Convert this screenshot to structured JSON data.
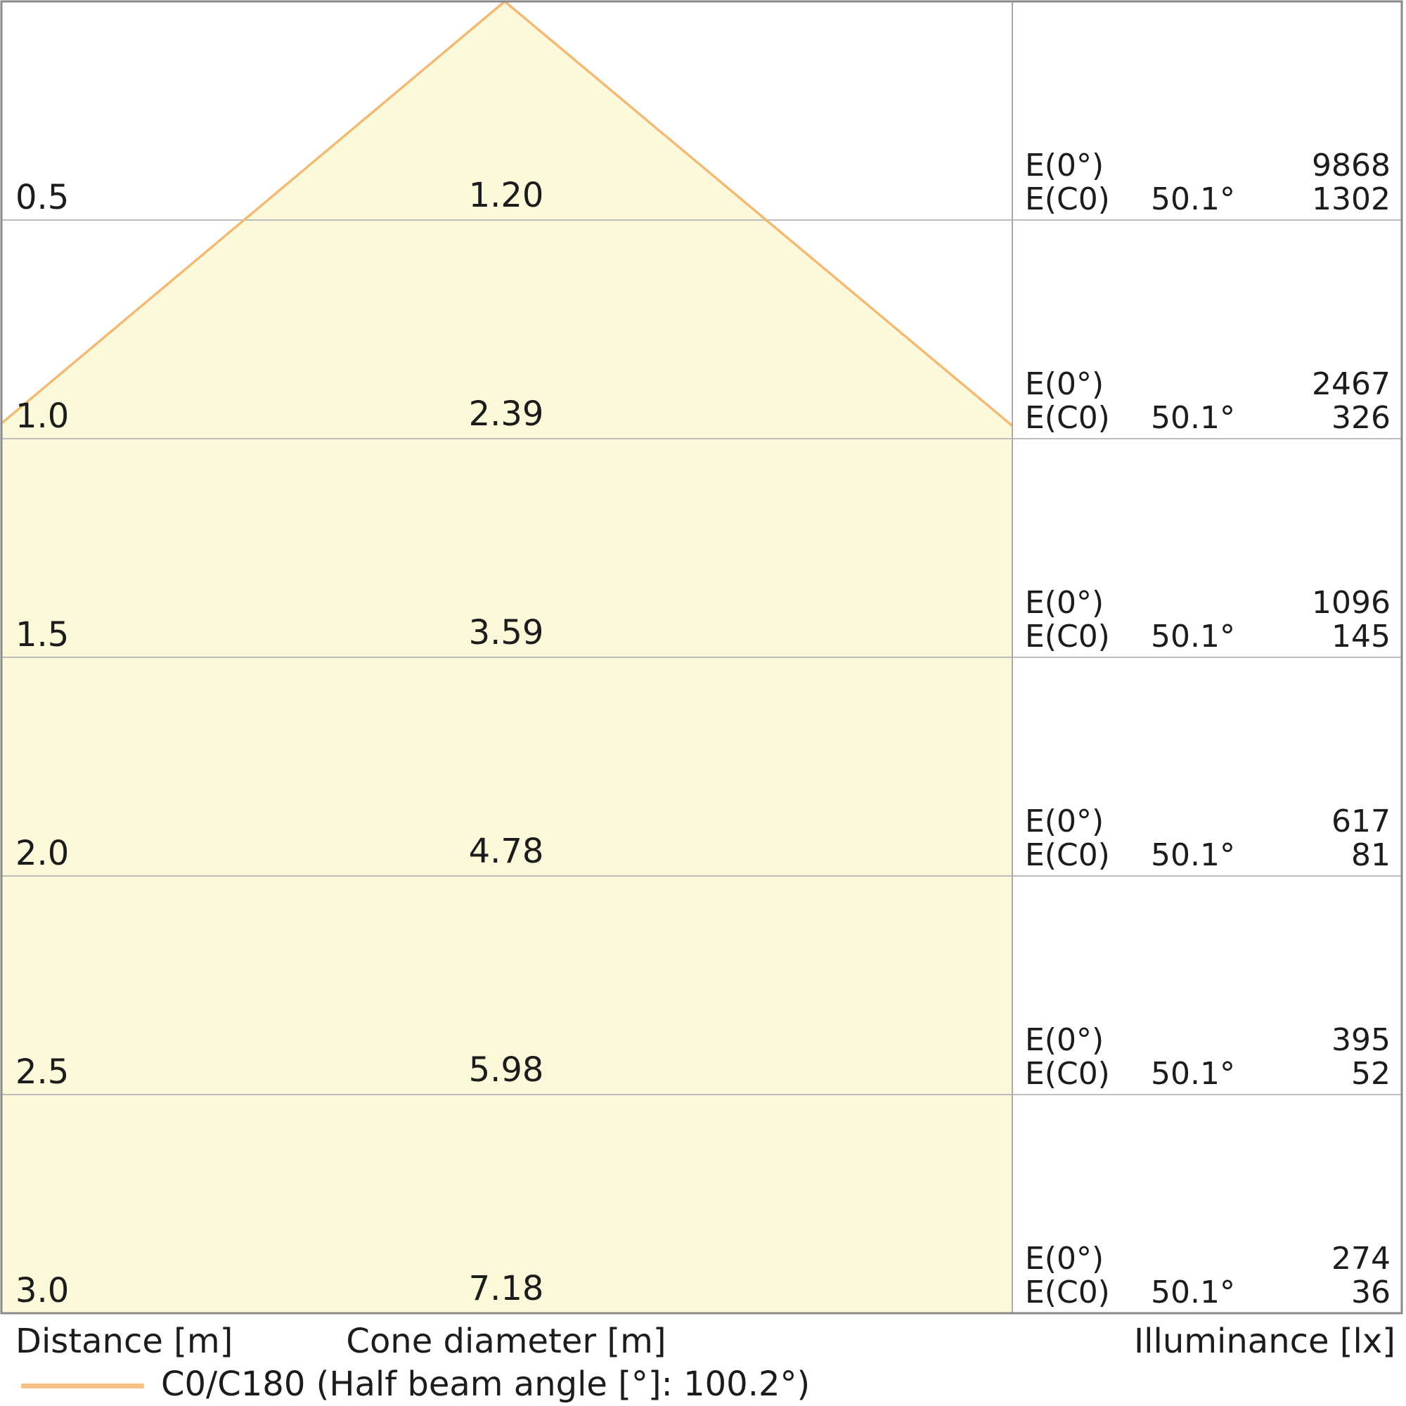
{
  "chart_data": {
    "type": "area",
    "title": "",
    "description": "Luminaire light cone diagram with distance, cone diameter and illuminance table",
    "axis_labels": {
      "distance": "Distance [m]",
      "cone_diameter": "Cone diameter [m]",
      "illuminance": "Illuminance [lx]"
    },
    "legend": {
      "label": "C0/C180 (Half beam angle [°]: 100.2°)",
      "position": "bottom-left"
    },
    "half_beam_angle_deg": 100.2,
    "series": {
      "distance_m": [
        0.5,
        1.0,
        1.5,
        2.0,
        2.5,
        3.0
      ],
      "cone_diameter_m": [
        1.2,
        2.39,
        3.59,
        4.78,
        5.98,
        7.18
      ],
      "E0_lx": [
        9868,
        2467,
        1096,
        617,
        395,
        274
      ],
      "EC0_lx": [
        1302,
        326,
        145,
        81,
        52,
        36
      ],
      "EC0_angle_deg": 50.1
    },
    "rows": [
      {
        "distance_m": "0.5",
        "cone_diameter_m": "1.20",
        "e0_label": "E(0°)",
        "e0_value": "9868",
        "ec0_label": "E(C0)",
        "angle": "50.1°",
        "ec0_value": "1302"
      },
      {
        "distance_m": "1.0",
        "cone_diameter_m": "2.39",
        "e0_label": "E(0°)",
        "e0_value": "2467",
        "ec0_label": "E(C0)",
        "angle": "50.1°",
        "ec0_value": "326"
      },
      {
        "distance_m": "1.5",
        "cone_diameter_m": "3.59",
        "e0_label": "E(0°)",
        "e0_value": "1096",
        "ec0_label": "E(C0)",
        "angle": "50.1°",
        "ec0_value": "145"
      },
      {
        "distance_m": "2.0",
        "cone_diameter_m": "4.78",
        "e0_label": "E(0°)",
        "e0_value": "617",
        "ec0_label": "E(C0)",
        "angle": "50.1°",
        "ec0_value": "81"
      },
      {
        "distance_m": "2.5",
        "cone_diameter_m": "5.98",
        "e0_label": "E(0°)",
        "e0_value": "395",
        "ec0_label": "E(C0)",
        "angle": "50.1°",
        "ec0_value": "52"
      },
      {
        "distance_m": "3.0",
        "cone_diameter_m": "7.18",
        "e0_label": "E(0°)",
        "e0_value": "274",
        "ec0_label": "E(C0)",
        "angle": "50.1°",
        "ec0_value": "36"
      }
    ],
    "layout": {
      "grid": true,
      "distance_range_m": [
        0,
        3.0
      ]
    },
    "colors": {
      "cone_fill": "#FCF9DA",
      "cone_edge": "#F2BA74",
      "legend_swatch": "#F5C083",
      "gridline": "#BDBDBD",
      "frame": "#8A8A8A",
      "divider": "#AAAAAA",
      "text": "#1C1C1C"
    }
  }
}
